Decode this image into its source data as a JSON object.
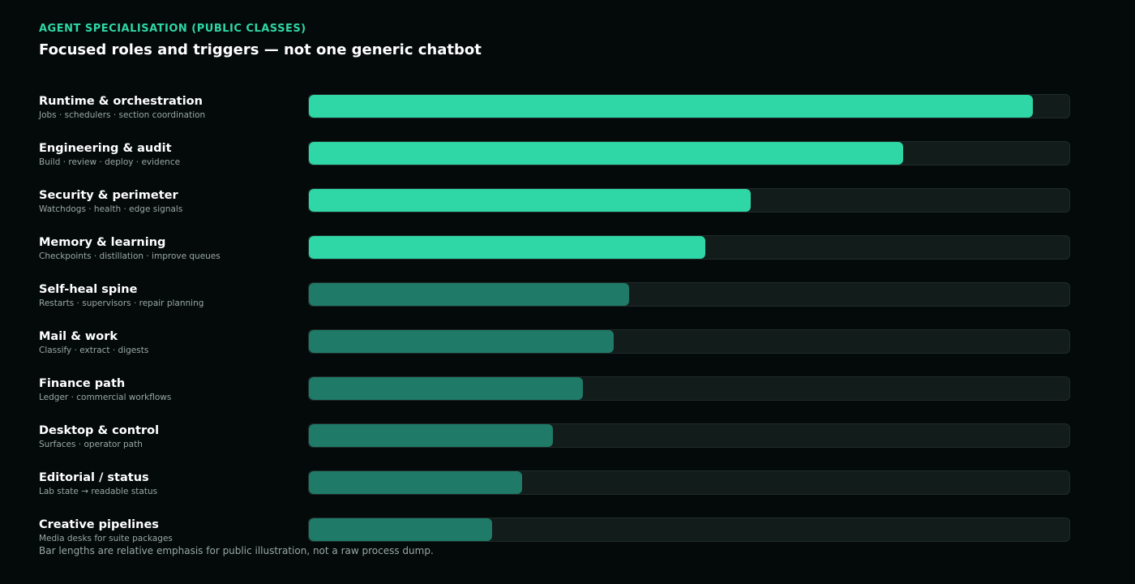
{
  "header": {
    "eyebrow": "AGENT SPECIALISATION (PUBLIC CLASSES)",
    "title": "Focused roles and triggers — not one generic chatbot"
  },
  "colors": {
    "accent": "#2fd6a6",
    "muted_bar": "#1f7a67",
    "track": "#121c1b"
  },
  "chart_data": {
    "type": "bar",
    "orientation": "horizontal",
    "xlim": [
      0,
      1
    ],
    "categories": [
      "Runtime & orchestration",
      "Engineering & audit",
      "Security & perimeter",
      "Memory & learning",
      "Self-heal spine",
      "Mail & work",
      "Finance path",
      "Desktop & control",
      "Editorial / status",
      "Creative pipelines"
    ],
    "subtitles": [
      "Jobs · schedulers · section coordination",
      "Build · review · deploy · evidence",
      "Watchdogs · health · edge signals",
      "Checkpoints · distillation · improve queues",
      "Restarts · supervisors · repair planning",
      "Classify · extract · digests",
      "Ledger · commercial workflows",
      "Surfaces · operator path",
      "Lab state → readable status",
      "Media desks for suite packages"
    ],
    "values": [
      0.95,
      0.78,
      0.58,
      0.52,
      0.42,
      0.4,
      0.36,
      0.32,
      0.28,
      0.24
    ],
    "emphasis": [
      true,
      true,
      true,
      true,
      false,
      false,
      false,
      false,
      false,
      false
    ]
  },
  "footnote": "Bar lengths are relative emphasis for public illustration, not a raw process dump."
}
